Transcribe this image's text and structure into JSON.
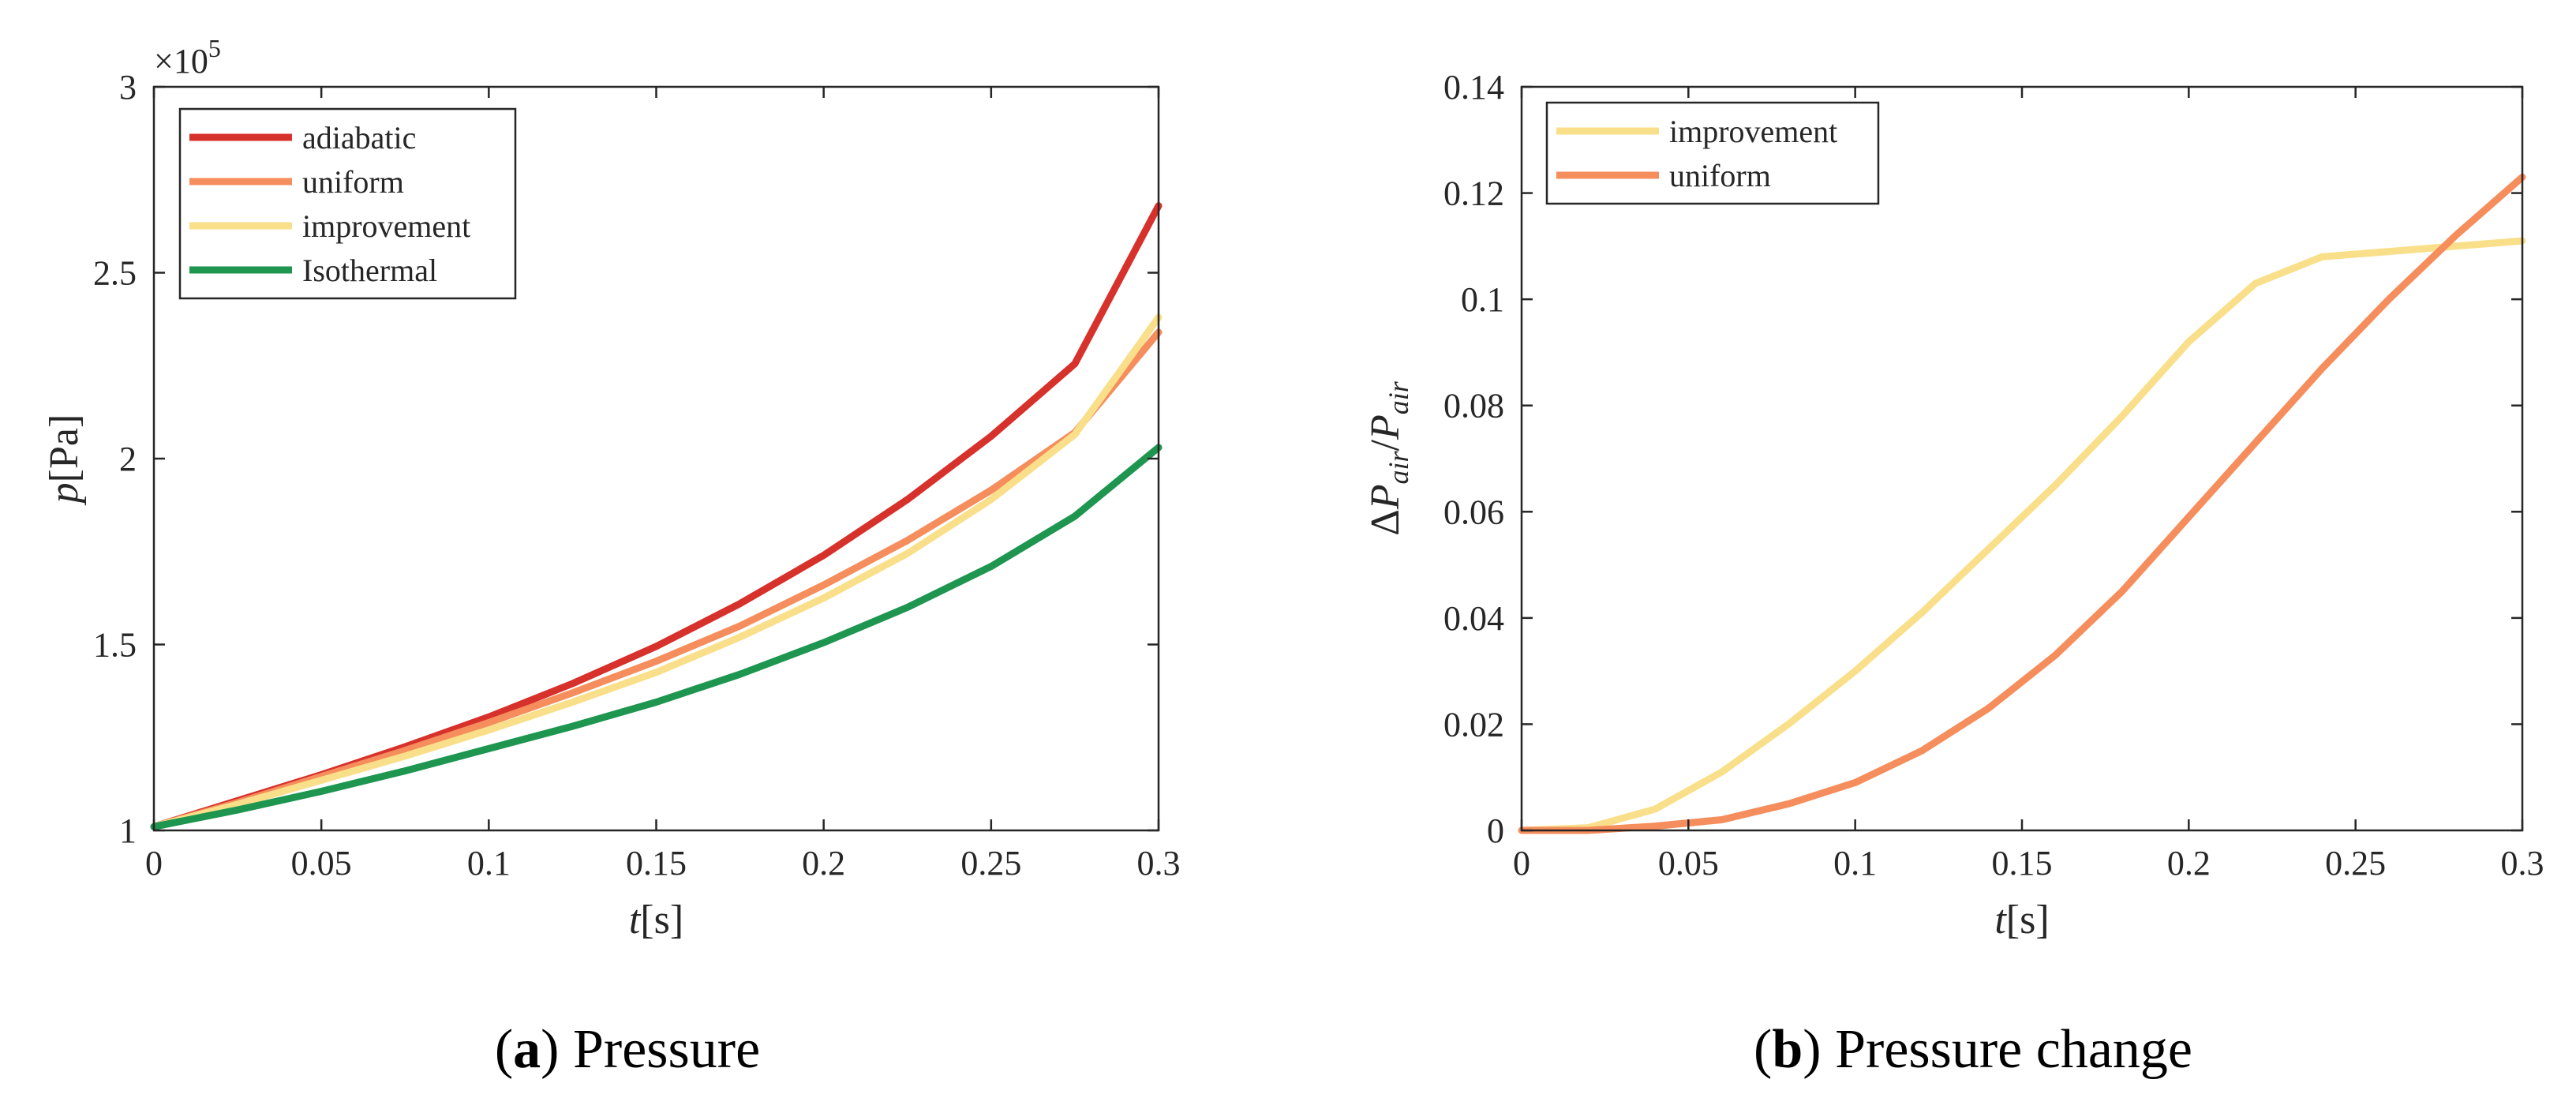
{
  "chart_data": [
    {
      "id": "a",
      "type": "line",
      "caption_label": "a",
      "caption_title": "Pressure",
      "xlabel_var": "t",
      "xlabel_unit": "[s]",
      "ylabel_var": "p",
      "ylabel_unit": "[Pa]",
      "exponent_base": "×10",
      "exponent_power": "5",
      "xlim": [
        0,
        0.3
      ],
      "ylim": [
        1,
        3
      ],
      "xticks": [
        0,
        0.05,
        0.1,
        0.15,
        0.2,
        0.25,
        0.3
      ],
      "xtick_labels": [
        "0",
        "0.05",
        "0.1",
        "0.15",
        "0.2",
        "0.25",
        "0.3"
      ],
      "yticks": [
        1,
        1.5,
        2,
        2.5,
        3
      ],
      "ytick_labels": [
        "1",
        "1.5",
        "2",
        "2.5",
        "3"
      ],
      "legend_position": "top-left",
      "series": [
        {
          "name": "adiabatic",
          "color": "#d7312c",
          "x": [
            0,
            0.025,
            0.05,
            0.075,
            0.1,
            0.125,
            0.15,
            0.175,
            0.2,
            0.225,
            0.25,
            0.275,
            0.3
          ],
          "y": [
            1.01,
            1.08,
            1.15,
            1.225,
            1.305,
            1.395,
            1.495,
            1.61,
            1.74,
            1.89,
            2.06,
            2.255,
            2.68
          ]
        },
        {
          "name": "uniform",
          "color": "#f58d5c",
          "x": [
            0,
            0.025,
            0.05,
            0.075,
            0.1,
            0.125,
            0.15,
            0.175,
            0.2,
            0.225,
            0.25,
            0.275,
            0.3
          ],
          "y": [
            1.01,
            1.075,
            1.145,
            1.215,
            1.29,
            1.37,
            1.455,
            1.55,
            1.66,
            1.78,
            1.915,
            2.07,
            2.34
          ]
        },
        {
          "name": "improvement",
          "color": "#fadf8a",
          "x": [
            0,
            0.025,
            0.05,
            0.075,
            0.1,
            0.125,
            0.15,
            0.175,
            0.2,
            0.225,
            0.25,
            0.275,
            0.3
          ],
          "y": [
            1.01,
            1.07,
            1.135,
            1.2,
            1.27,
            1.345,
            1.425,
            1.52,
            1.625,
            1.745,
            1.89,
            2.065,
            2.38
          ]
        },
        {
          "name": "Isothermal",
          "color": "#1e9650",
          "x": [
            0,
            0.025,
            0.05,
            0.075,
            0.1,
            0.125,
            0.15,
            0.175,
            0.2,
            0.225,
            0.25,
            0.275,
            0.3
          ],
          "y": [
            1.01,
            1.055,
            1.105,
            1.16,
            1.22,
            1.28,
            1.345,
            1.42,
            1.505,
            1.6,
            1.71,
            1.845,
            2.03
          ]
        }
      ]
    },
    {
      "id": "b",
      "type": "line",
      "caption_label": "b",
      "caption_title": "Pressure change",
      "xlabel_var": "t",
      "xlabel_unit": "[s]",
      "ylabel_prefix": "Δ",
      "ylabel_num": "P",
      "ylabel_num_sub": "air",
      "ylabel_sep": "/",
      "ylabel_den": "P",
      "ylabel_den_sub": "air",
      "xlim": [
        0,
        0.3
      ],
      "ylim": [
        0,
        0.14
      ],
      "xticks": [
        0,
        0.05,
        0.1,
        0.15,
        0.2,
        0.25,
        0.3
      ],
      "xtick_labels": [
        "0",
        "0.05",
        "0.1",
        "0.15",
        "0.2",
        "0.25",
        "0.3"
      ],
      "yticks": [
        0,
        0.02,
        0.04,
        0.06,
        0.08,
        0.1,
        0.12,
        0.14
      ],
      "ytick_labels": [
        "0",
        "0.02",
        "0.04",
        "0.06",
        "0.08",
        "0.1",
        "0.12",
        "0.14"
      ],
      "legend_position": "top-left",
      "series": [
        {
          "name": "improvement",
          "color": "#fadf8a",
          "x": [
            0,
            0.02,
            0.04,
            0.06,
            0.08,
            0.1,
            0.12,
            0.14,
            0.16,
            0.18,
            0.2,
            0.22,
            0.24,
            0.26,
            0.28,
            0.3
          ],
          "y": [
            0,
            0.0005,
            0.004,
            0.011,
            0.02,
            0.03,
            0.041,
            0.053,
            0.065,
            0.078,
            0.092,
            0.103,
            0.108,
            0.109,
            0.11,
            0.111
          ]
        },
        {
          "name": "uniform",
          "color": "#f58d5c",
          "x": [
            0,
            0.02,
            0.04,
            0.06,
            0.08,
            0.1,
            0.12,
            0.14,
            0.16,
            0.18,
            0.2,
            0.22,
            0.24,
            0.26,
            0.28,
            0.3
          ],
          "y": [
            0,
            0,
            0.0008,
            0.002,
            0.005,
            0.009,
            0.015,
            0.023,
            0.033,
            0.045,
            0.059,
            0.073,
            0.087,
            0.1,
            0.112,
            0.123
          ]
        }
      ]
    }
  ]
}
